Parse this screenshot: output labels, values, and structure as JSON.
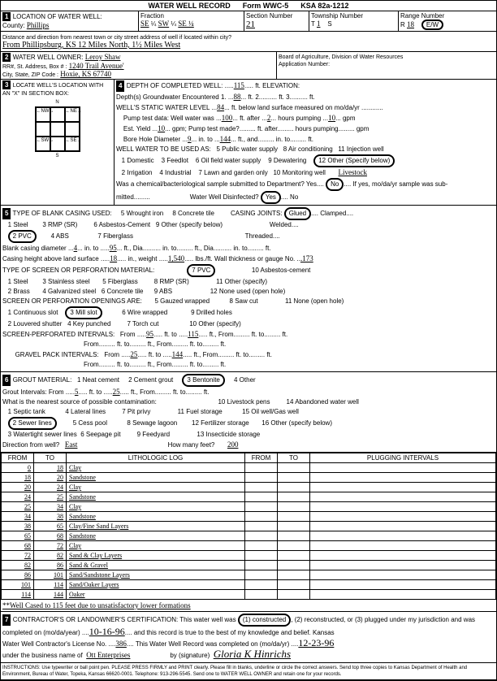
{
  "form": {
    "title": "WATER WELL RECORD",
    "form_no": "Form WWC-5",
    "ksa": "KSA 82a-1212"
  },
  "loc": {
    "county_label": "County:",
    "county": "Phillips",
    "fraction_label": "Fraction",
    "frac1": "SE",
    "frac2": "¼",
    "frac3": "SW",
    "frac4": "¼",
    "frac5": "SE ¼",
    "section_label": "Section Number",
    "section": "21",
    "township_label": "Township Number",
    "township_t": "T",
    "township_n": "1",
    "township_s": "S",
    "range_label": "Range Number",
    "range_r": "R",
    "range_n": "18",
    "range_ew": "E/W",
    "dir_label": "Distance and direction from nearest town or city street address of well if located within city?",
    "dir": "From Phillipsburg, KS  12 Miles North, 1½ Miles West"
  },
  "owner": {
    "label": "WATER WELL OWNER:",
    "name": "Leroy Shaw",
    "addr_label": "RR#, St. Address, Box #  :",
    "addr": "1240 Trail Avenue'",
    "city_label": "City, State, ZIP Code  :",
    "city": "Hoxie, KS  67740",
    "board": "Board of Agriculture, Division of Water Resources",
    "appno": "Application Number:"
  },
  "sec3": {
    "label": "LOCATE WELL'S LOCATION WITH AN \"X\" IN SECTION BOX:",
    "cells": [
      "",
      "",
      "",
      "NW",
      "",
      "NE",
      "",
      "",
      "",
      "W",
      "",
      "E",
      "",
      "",
      "",
      "SW",
      "",
      "SE",
      "",
      "",
      ""
    ]
  },
  "depth": {
    "label": "DEPTH OF COMPLETED WELL:",
    "val": "115",
    "ft": "ft.  ELEVATION:",
    "gw": "Depth(s) Groundwater Encountered",
    "gw1": "1.",
    "gw1v": "88",
    "gw2": "ft.   2.",
    "gw3": "ft.   3.",
    "gwft": "ft.",
    "static": "WELL'S STATIC WATER LEVEL",
    "static_v": "84",
    "static_t": "ft. below land surface measured on mo/da/yr",
    "pump": "Pump test data:  Well water was",
    "pump_v": "100",
    "pump_a": "ft. after",
    "pump_h": "2",
    "pump_hp": "hours pumping",
    "pump_g": "10",
    "gpm": "gpm",
    "est": "Est. Yield",
    "est_v": "10",
    "est_g": "gpm; Pump test made?",
    "est_a": "ft. after",
    "est_hp": "hours pumping",
    "gpm2": "gpm",
    "bore": "Bore Hole Diameter",
    "bore_v": "9",
    "bore_in": "in. to",
    "bore_d": "144",
    "bore_ft": "ft., and",
    "bore_to": "in. to",
    "bore_ft2": "ft.",
    "use": "WELL WATER TO BE USED AS:",
    "u1": "1 Domestic",
    "u2": "2 Irrigation",
    "u3": "3 Feedlot",
    "u4": "4 Industrial",
    "u5": "5 Public water supply",
    "u6": "6 Oil field water supply",
    "u7": "7 Lawn and garden only",
    "u8": "8 Air conditioning",
    "u9": "9 Dewatering",
    "u10": "10 Monitoring well",
    "u11": "11 Injection well",
    "u12": "12 Other (Specify below)",
    "u12v": "Livestock",
    "chem": "Was a chemical/bacteriological sample submitted to Department? Yes",
    "chem_no": "No",
    "chem_if": "If yes, mo/da/yr sample was sub-",
    "mitted": "mitted",
    "disinf": "Water Well Disinfected?",
    "yes": "Yes",
    "no": "No"
  },
  "casing": {
    "label": "TYPE OF BLANK CASING USED:",
    "c1": "1 Steel",
    "c2": "2 PVC",
    "c3": "3 RMP (SR)",
    "c4": "4 ABS",
    "c5": "5 Wrought iron",
    "c6": "6 Asbestos-Cement",
    "c7": "7 Fiberglass",
    "c8": "8 Concrete tile",
    "c9": "9 Other (specify below)",
    "joints": "CASING JOINTS:",
    "glued": "Glued",
    "clamped": "Clamped",
    "welded": "Welded",
    "threaded": "Threaded",
    "dia": "Blank casing diameter",
    "dia_v": "4",
    "dia_in": "in. to",
    "dia_ft": "95",
    "dia_fd": "ft., Dia.",
    "dia_to": "in. to",
    "dia_f2": "ft., Dia.",
    "dia_to2": "in. to",
    "dia_ft3": "ft.",
    "height": "Casing height above land surface",
    "height_v": "18",
    "height_in": "in., weight",
    "weight": "1,540",
    "lbs": "lbs./ft. Wall thickness or gauge No.",
    "gauge": ".173"
  },
  "screen": {
    "label": "TYPE OF SCREEN OR PERFORATION MATERIAL:",
    "s1": "1 Steel",
    "s2": "2 Brass",
    "s3": "3 Stainless steel",
    "s4": "4 Galvanized steel",
    "s5": "5 Fiberglass",
    "s6": "6 Concrete tile",
    "s7": "7 PVC",
    "s8": "8 RMP (SR)",
    "s9": "9 ABS",
    "s10": "10 Asbestos-cement",
    "s11": "11 Other (specify)",
    "s12": "12 None used (open hole)",
    "open": "SCREEN OR PERFORATION OPENINGS ARE:",
    "o1": "1 Continuous slot",
    "o2": "2 Louvered shutter",
    "o3": "3 Mill slot",
    "o4": "4 Key punched",
    "o5": "5 Gauzed wrapped",
    "o6": "6 Wire wrapped",
    "o7": "7 Torch cut",
    "o8": "8 Saw cut",
    "o9": "9 Drilled holes",
    "o10": "10 Other (specify)",
    "o11": "11 None (open hole)",
    "perf": "SCREEN-PERFORATED INTERVALS:",
    "from": "From",
    "to": "ft. to",
    "ft": "ft., From",
    "ftto": "ft. to",
    "ftend": "ft.",
    "pv1f": "95",
    "pv1t": "115",
    "grav": "GRAVEL PACK INTERVALS:",
    "gv1f": "25",
    "gv1t": "144"
  },
  "grout": {
    "label": "GROUT MATERIAL:",
    "g1": "1 Neat cement",
    "g2": "2 Cement grout",
    "g3": "3 Bentonite",
    "g4": "4 Other",
    "int": "Grout Intervals:  From",
    "iv1": "5",
    "ito": "ft. to",
    "iv2": "25",
    "ift": "ft., From",
    "ift2": "ft. to",
    "iftend": "ft.",
    "contam": "What is the nearest source of possible contamination:",
    "n1": "1 Septic tank",
    "n2": "2 Sewer lines",
    "n3": "3 Watertight sewer lines",
    "n4": "4 Lateral lines",
    "n5": "5 Cess pool",
    "n6": "6 Seepage pit",
    "n7": "7 Pit privy",
    "n8": "8 Sewage lagoon",
    "n9": "9 Feedyard",
    "n10": "10 Livestock pens",
    "n11": "11 Fuel storage",
    "n12": "12 Fertilizer storage",
    "n13": "13 Insecticide storage",
    "n14": "14 Abandoned water well",
    "n15": "15 Oil well/Gas well",
    "n16": "16 Other (specify below)",
    "dir": "Direction from well?",
    "dirv": "East",
    "many": "How many feet?",
    "manyv": "200"
  },
  "log": {
    "h_from": "FROM",
    "h_to": "TO",
    "h_lith": "LITHOLOGIC LOG",
    "h_plug": "PLUGGING INTERVALS",
    "rows": [
      {
        "f": "0",
        "t": "18",
        "l": "Clay"
      },
      {
        "f": "18",
        "t": "20",
        "l": "Sandstone"
      },
      {
        "f": "20",
        "t": "24",
        "l": "Clay"
      },
      {
        "f": "24",
        "t": "25",
        "l": "Sandstone"
      },
      {
        "f": "25",
        "t": "34",
        "l": "Clay"
      },
      {
        "f": "34",
        "t": "38",
        "l": "Sandstone"
      },
      {
        "f": "38",
        "t": "65",
        "l": "Clay/Fine Sand Layers"
      },
      {
        "f": "65",
        "t": "68",
        "l": "Sandstone"
      },
      {
        "f": "68",
        "t": "72",
        "l": "Clay"
      },
      {
        "f": "72",
        "t": "82",
        "l": "Sand & Clay Layers"
      },
      {
        "f": "82",
        "t": "86",
        "l": "Sand & Gravel"
      },
      {
        "f": "86",
        "t": "101",
        "l": "Sand/Sandstone Layers"
      },
      {
        "f": "101",
        "t": "114",
        "l": "Sand/Oaker Layers"
      },
      {
        "f": "114",
        "t": "144",
        "l": "Oaker"
      }
    ],
    "note": "**Well Cased to 115 feet due to unsatisfactory lower formations"
  },
  "cert": {
    "label": "CONTRACTOR'S OR LANDOWNER'S CERTIFICATION: This water well was",
    "c1": "(1) constructed",
    "c2": "(2) reconstructed, or (3) plugged under my jurisdiction and was",
    "comp": "completed on (mo/da/year)",
    "compv": "10-16-96",
    "true": "and this record is true to the best of my knowledge and belief. Kansas",
    "lic": "Water Well Contractor's License No.",
    "licv": "386",
    "rec": "This Water Well Record was completed on (mo/da/yr)",
    "recv": "12-23-96",
    "bus": "under the business name of",
    "busv": "Ott Enterprises",
    "sig": "by (signature)",
    "sigv": "Gloria K Hinrichs",
    "instr": "INSTRUCTIONS: Use typewriter or ball point pen. PLEASE PRESS FIRMLY and PRINT clearly. Please fill in blanks, underline or circle the correct answers. Send top three copies to Kansas Department of Health and Environment, Bureau of Water, Topeka, Kansas 66620-0001. Telephone: 913-296-5545. Send one to WATER WELL OWNER and retain one for your records."
  }
}
